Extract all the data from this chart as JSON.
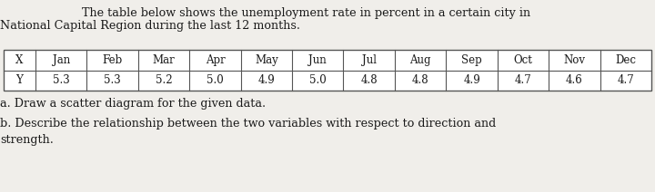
{
  "title_line1": "The table below shows the unemployment rate in percent in a certain city in",
  "title_line2": "National Capital Region during the last 12 months.",
  "months": [
    "Jan",
    "Feb",
    "Mar",
    "Apr",
    "May",
    "Jun",
    "Jul",
    "Aug",
    "Sep",
    "Oct",
    "Nov",
    "Dec"
  ],
  "values": [
    "5.3",
    "5.3",
    "5.2",
    "5.0",
    "4.9",
    "5.0",
    "4.8",
    "4.8",
    "4.9",
    "4.7",
    "4.6",
    "4.7"
  ],
  "question_a": "a. Draw a scatter diagram for the given data.",
  "question_b": "b. Describe the relationship between the two variables with respect to direction and",
  "question_b2": "strength.",
  "background_color": "#f0eeea",
  "text_color": "#1a1a1a",
  "table_bg": "#ffffff",
  "border_color": "#555555",
  "font_size_title": 9.2,
  "font_size_table": 8.5,
  "font_size_question": 9.2,
  "title1_indent": 0.125,
  "title2_indent": 0.0
}
